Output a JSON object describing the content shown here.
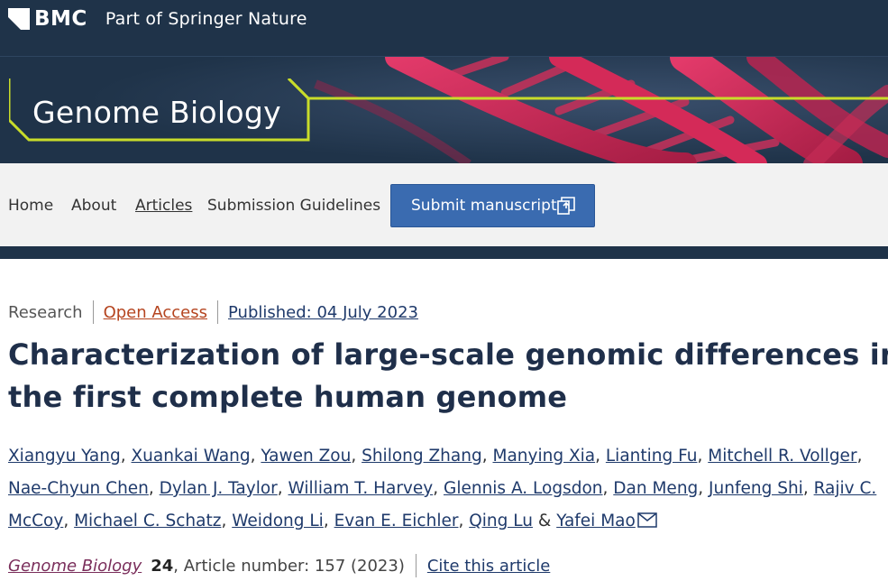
{
  "header": {
    "brand": "BMC",
    "tagline": "Part of Springer Nature"
  },
  "journal": {
    "name": "Genome Biology"
  },
  "nav": {
    "items": [
      "Home",
      "About",
      "Articles",
      "Submission Guidelines"
    ],
    "active": "Articles",
    "submit_label": "Submit manuscript",
    "submit_icon": "external-upload-icon"
  },
  "article": {
    "type": "Research",
    "access": "Open Access",
    "published": "Published: 04 July 2023",
    "title_line1": "Characterization of large-scale genomic differences in",
    "title_line2": "the first complete human genome",
    "authors": [
      "Xiangyu Yang",
      "Xuankai Wang",
      "Yawen Zou",
      "Shilong Zhang",
      "Manying Xia",
      "Lianting Fu",
      "Mitchell R. Vollger",
      "Nae-Chyun Chen",
      "Dylan J. Taylor",
      "William T. Harvey",
      "Glennis A. Logsdon",
      "Dan Meng",
      "Junfeng Shi",
      "Rajiv C. McCoy",
      "Michael C. Schatz",
      "Weidong Li",
      "Evan E. Eichler",
      "Qing Lu",
      "Yafei Mao"
    ],
    "journal_ref": "Genome Biology",
    "volume": "24",
    "article_number": ", Article number: 157 (2023)",
    "cite_label": "Cite this article"
  },
  "colors": {
    "header_bg": "#1f3349",
    "accent_lime": "#c8dc2a",
    "button_blue": "#3a6bb0",
    "title_color": "#1f2f4a",
    "link_color": "#1f3a6b",
    "open_access_color": "#b5441f"
  }
}
